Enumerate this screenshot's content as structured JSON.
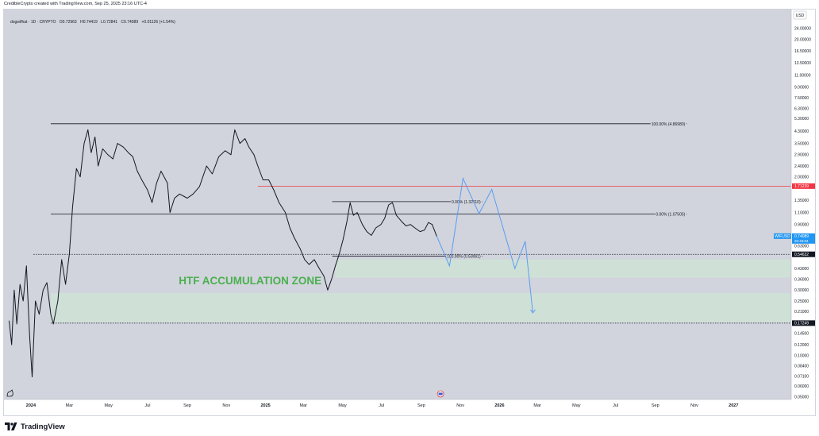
{
  "header": {
    "attribution": "CredibleCrypto created with TradingView.com, Sep 25, 2025 23:16 UTC-4"
  },
  "legend": {
    "symbol": "dogwifhat · 1D · CRYPTO",
    "open": "O0.72963",
    "high": "H0.74419",
    "low": "L0.72841",
    "close": "C0.74089",
    "change": "+0.01126 (+1.54%)"
  },
  "footer": {
    "brand": "TradingView"
  },
  "colors": {
    "candle": "#131722",
    "zone_fill": "#cfe3d6",
    "zone_text": "#4caf50",
    "projection": "#5b9cf2",
    "resistance": "#f23645",
    "symbol_badge": "#2196f3",
    "chart_bg": "#d1d4dc"
  },
  "chart_data": {
    "type": "line",
    "symbol": "dogwifhat",
    "interval": "1D",
    "y_scale": "log",
    "ylim": [
      0.048,
      33
    ],
    "currency_label": "USD",
    "y_ticks": [
      {
        "value": 29.0,
        "label": "29.00000"
      },
      {
        "value": 24.0,
        "label": "24.00000"
      },
      {
        "value": 20.0,
        "label": "20.00000"
      },
      {
        "value": 16.5,
        "label": "16.50000"
      },
      {
        "value": 13.5,
        "label": "13.50000"
      },
      {
        "value": 11.0,
        "label": "11.00000"
      },
      {
        "value": 9.0,
        "label": "9.00000"
      },
      {
        "value": 7.5,
        "label": "7.50000"
      },
      {
        "value": 6.3,
        "label": "6.30000"
      },
      {
        "value": 5.3,
        "label": "5.30000"
      },
      {
        "value": 4.3,
        "label": "4.30000"
      },
      {
        "value": 3.5,
        "label": "3.50000"
      },
      {
        "value": 2.9,
        "label": "2.90000"
      },
      {
        "value": 2.4,
        "label": "2.40000"
      },
      {
        "value": 2.0,
        "label": "2.00000"
      },
      {
        "value": 1.35,
        "label": "1.35000"
      },
      {
        "value": 1.1,
        "label": "1.10000"
      },
      {
        "value": 0.9,
        "label": "0.90000"
      },
      {
        "value": 0.63,
        "label": "0.63000"
      },
      {
        "value": 0.43,
        "label": "0.43000"
      },
      {
        "value": 0.36,
        "label": "0.36000"
      },
      {
        "value": 0.3,
        "label": "0.30000"
      },
      {
        "value": 0.25,
        "label": "0.25000"
      },
      {
        "value": 0.21,
        "label": "0.21000"
      },
      {
        "value": 0.145,
        "label": "0.14500"
      },
      {
        "value": 0.12,
        "label": "0.12000"
      },
      {
        "value": 0.1,
        "label": "0.10000"
      },
      {
        "value": 0.084,
        "label": "0.08400"
      },
      {
        "value": 0.071,
        "label": "0.07100"
      },
      {
        "value": 0.06,
        "label": "0.06000"
      },
      {
        "value": 0.05,
        "label": "0.05000"
      }
    ],
    "price_badges": [
      {
        "value": 1.71239,
        "label": "1.71239",
        "style": "red"
      },
      {
        "value": 0.74089,
        "label": "0.74089",
        "name": "WIFUSD",
        "countdown": "20:43:04",
        "style": "blue"
      },
      {
        "value": 0.54632,
        "label": "0.54632",
        "style": "dark"
      },
      {
        "value": 0.17249,
        "label": "0.17249",
        "style": "dark"
      }
    ],
    "x_ticks": [
      {
        "date": "2024-01-01",
        "label": "2024",
        "bold": true
      },
      {
        "date": "2024-03-01",
        "label": "Mar"
      },
      {
        "date": "2024-05-01",
        "label": "May"
      },
      {
        "date": "2024-07-01",
        "label": "Jul"
      },
      {
        "date": "2024-09-01",
        "label": "Sep"
      },
      {
        "date": "2024-11-01",
        "label": "Nov"
      },
      {
        "date": "2025-01-01",
        "label": "2025",
        "bold": true
      },
      {
        "date": "2025-03-01",
        "label": "Mar"
      },
      {
        "date": "2025-05-01",
        "label": "May"
      },
      {
        "date": "2025-07-01",
        "label": "Jul"
      },
      {
        "date": "2025-09-01",
        "label": "Sep"
      },
      {
        "date": "2025-11-01",
        "label": "Nov"
      },
      {
        "date": "2026-01-01",
        "label": "2026",
        "bold": true
      },
      {
        "date": "2026-03-01",
        "label": "Mar"
      },
      {
        "date": "2026-05-01",
        "label": "May"
      },
      {
        "date": "2026-07-01",
        "label": "Jul"
      },
      {
        "date": "2026-09-01",
        "label": "Sep"
      },
      {
        "date": "2026-11-01",
        "label": "Nov"
      },
      {
        "date": "2027-01-01",
        "label": "2027",
        "bold": true
      }
    ],
    "xlim": [
      "2023-11-20",
      "2027-04-01"
    ],
    "price_path": [
      [
        "2023-11-28",
        0.18
      ],
      [
        "2023-12-02",
        0.12
      ],
      [
        "2023-12-06",
        0.3
      ],
      [
        "2023-12-10",
        0.17
      ],
      [
        "2023-12-15",
        0.33
      ],
      [
        "2023-12-20",
        0.25
      ],
      [
        "2023-12-25",
        0.45
      ],
      [
        "2023-12-30",
        0.14
      ],
      [
        "2024-01-03",
        0.07
      ],
      [
        "2024-01-08",
        0.25
      ],
      [
        "2024-01-14",
        0.2
      ],
      [
        "2024-01-20",
        0.3
      ],
      [
        "2024-01-26",
        0.34
      ],
      [
        "2024-02-01",
        0.2
      ],
      [
        "2024-02-05",
        0.17
      ],
      [
        "2024-02-12",
        0.25
      ],
      [
        "2024-02-18",
        0.5
      ],
      [
        "2024-02-24",
        0.33
      ],
      [
        "2024-03-01",
        0.55
      ],
      [
        "2024-03-06",
        1.2
      ],
      [
        "2024-03-12",
        2.3
      ],
      [
        "2024-03-18",
        2.0
      ],
      [
        "2024-03-24",
        3.5
      ],
      [
        "2024-03-30",
        4.4
      ],
      [
        "2024-04-04",
        3.0
      ],
      [
        "2024-04-10",
        3.9
      ],
      [
        "2024-04-15",
        2.4
      ],
      [
        "2024-04-22",
        3.2
      ],
      [
        "2024-04-30",
        2.9
      ],
      [
        "2024-05-08",
        2.7
      ],
      [
        "2024-05-15",
        3.5
      ],
      [
        "2024-05-24",
        3.3
      ],
      [
        "2024-06-01",
        3.0
      ],
      [
        "2024-06-08",
        2.8
      ],
      [
        "2024-06-15",
        2.2
      ],
      [
        "2024-06-22",
        1.9
      ],
      [
        "2024-07-01",
        1.6
      ],
      [
        "2024-07-08",
        1.3
      ],
      [
        "2024-07-15",
        1.8
      ],
      [
        "2024-07-22",
        2.2
      ],
      [
        "2024-08-01",
        1.8
      ],
      [
        "2024-08-05",
        1.1
      ],
      [
        "2024-08-12",
        1.4
      ],
      [
        "2024-08-20",
        1.5
      ],
      [
        "2024-09-01",
        1.4
      ],
      [
        "2024-09-10",
        1.5
      ],
      [
        "2024-09-20",
        1.7
      ],
      [
        "2024-10-01",
        2.4
      ],
      [
        "2024-10-10",
        2.1
      ],
      [
        "2024-10-20",
        2.8
      ],
      [
        "2024-10-30",
        3.1
      ],
      [
        "2024-11-08",
        2.9
      ],
      [
        "2024-11-14",
        4.4
      ],
      [
        "2024-11-22",
        3.5
      ],
      [
        "2024-11-30",
        3.8
      ],
      [
        "2024-12-06",
        3.3
      ],
      [
        "2024-12-14",
        2.9
      ],
      [
        "2024-12-20",
        2.4
      ],
      [
        "2024-12-28",
        1.9
      ],
      [
        "2025-01-06",
        1.9
      ],
      [
        "2025-01-14",
        1.6
      ],
      [
        "2025-01-22",
        1.3
      ],
      [
        "2025-02-01",
        1.1
      ],
      [
        "2025-02-08",
        0.85
      ],
      [
        "2025-02-15",
        0.72
      ],
      [
        "2025-02-24",
        0.6
      ],
      [
        "2025-03-03",
        0.5
      ],
      [
        "2025-03-10",
        0.46
      ],
      [
        "2025-03-18",
        0.5
      ],
      [
        "2025-03-26",
        0.43
      ],
      [
        "2025-04-02",
        0.38
      ],
      [
        "2025-04-08",
        0.3
      ],
      [
        "2025-04-14",
        0.36
      ],
      [
        "2025-04-20",
        0.45
      ],
      [
        "2025-04-26",
        0.55
      ],
      [
        "2025-05-02",
        0.7
      ],
      [
        "2025-05-08",
        0.95
      ],
      [
        "2025-05-13",
        1.3
      ],
      [
        "2025-05-18",
        1.05
      ],
      [
        "2025-05-24",
        1.1
      ],
      [
        "2025-06-01",
        0.9
      ],
      [
        "2025-06-08",
        0.8
      ],
      [
        "2025-06-15",
        0.75
      ],
      [
        "2025-06-22",
        0.85
      ],
      [
        "2025-06-30",
        0.9
      ],
      [
        "2025-07-06",
        1.0
      ],
      [
        "2025-07-12",
        1.25
      ],
      [
        "2025-07-18",
        1.3
      ],
      [
        "2025-07-24",
        1.05
      ],
      [
        "2025-08-01",
        0.95
      ],
      [
        "2025-08-08",
        0.88
      ],
      [
        "2025-08-15",
        0.9
      ],
      [
        "2025-08-22",
        0.85
      ],
      [
        "2025-08-30",
        0.8
      ],
      [
        "2025-09-06",
        0.82
      ],
      [
        "2025-09-12",
        0.93
      ],
      [
        "2025-09-18",
        0.9
      ],
      [
        "2025-09-25",
        0.74
      ]
    ],
    "projection_path": [
      [
        "2025-09-25",
        0.74
      ],
      [
        "2025-10-15",
        0.45
      ],
      [
        "2025-11-05",
        1.95
      ],
      [
        "2025-11-30",
        1.08
      ],
      [
        "2025-12-20",
        1.62
      ],
      [
        "2026-01-25",
        0.43
      ],
      [
        "2026-02-10",
        0.68
      ],
      [
        "2026-02-22",
        0.205
      ]
    ],
    "horizontal_levels": [
      {
        "name": "high-line",
        "value": 4.8698,
        "x_from": "2024-02-01",
        "x_to": "2026-10-20",
        "label": "100.00% (4.86980)",
        "style": "solid",
        "color": "#131722"
      },
      {
        "name": "fib-0-lower",
        "value": 1.07505,
        "x_from": "2024-02-01",
        "x_to": "2026-10-20",
        "label": "0.00% (1.07505)",
        "style": "solid",
        "color": "#131722"
      },
      {
        "name": "resistance",
        "value": 1.71239,
        "x_from": "2024-12-20",
        "x_to": "2027-03-31",
        "label": "",
        "style": "solid",
        "color": "#f23645"
      },
      {
        "name": "fib-0-upper",
        "value": 1.3211,
        "x_from": "2025-04-15",
        "x_to": "2025-12-05",
        "label": "0.00% (1.32110)",
        "style": "solid",
        "color": "#131722"
      },
      {
        "name": "fib-100-upper",
        "value": 0.53061,
        "x_from": "2025-04-15",
        "x_to": "2025-12-05",
        "label": "100.00% (0.53061)",
        "style": "solid",
        "color": "#131722"
      },
      {
        "name": "upper-dotted",
        "value": 0.54632,
        "x_from": "2024-01-05",
        "x_to": "2027-03-31",
        "label": "",
        "style": "dotted",
        "color": "#131722"
      },
      {
        "name": "lower-dotted",
        "value": 0.17249,
        "x_from": "2024-02-01",
        "x_to": "2027-03-31",
        "label": "",
        "style": "dotted",
        "color": "#131722"
      }
    ],
    "zones": [
      {
        "name": "upper-zone",
        "from": 0.37,
        "to": 0.5,
        "x_from": "2025-04-20",
        "x_to": "2027-03-31"
      },
      {
        "name": "lower-zone",
        "from": 0.175,
        "to": 0.285,
        "x_from": "2024-02-01",
        "x_to": "2027-03-31"
      }
    ],
    "annotations": [
      {
        "text": "HTF ACCUMULATION ZONE",
        "x": "2024-12-08",
        "y": 0.33
      }
    ],
    "markers": [
      {
        "name": "dog-icon",
        "x": "2023-11-30"
      },
      {
        "name": "flag-icon",
        "x": "2025-10-01"
      }
    ]
  }
}
